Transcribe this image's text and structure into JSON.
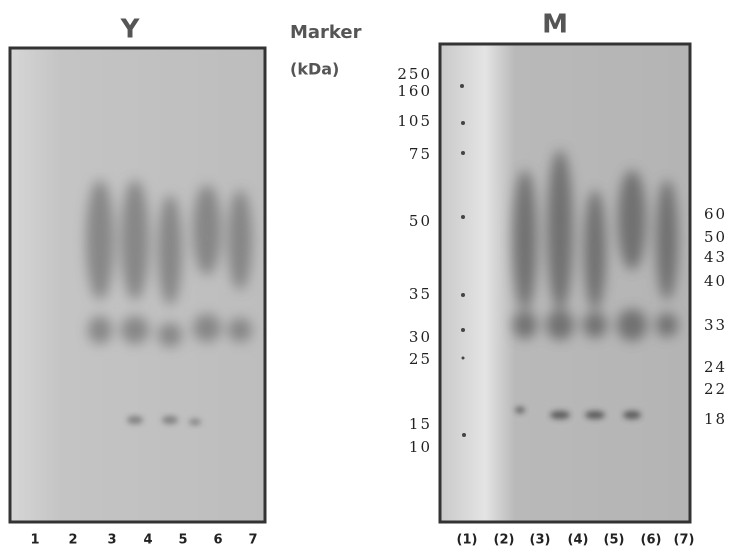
{
  "panels": [
    {
      "title": "Y",
      "lanes": [
        "1",
        "2",
        "3",
        "4",
        "5",
        "6",
        "7"
      ]
    },
    {
      "title": "M",
      "lanes": [
        "(1)",
        "(2)",
        "(3)",
        "(4)",
        "(5)",
        "(6)",
        "(7)"
      ],
      "band_labels": [
        "60",
        "50",
        "43",
        "40",
        "33",
        "24",
        "22",
        "18"
      ]
    }
  ],
  "marker": {
    "title": "Marker",
    "unit": "(kDa)",
    "labels": [
      "250",
      "160",
      "105",
      "75",
      "50",
      "35",
      "30",
      "25",
      "15",
      "10"
    ]
  }
}
